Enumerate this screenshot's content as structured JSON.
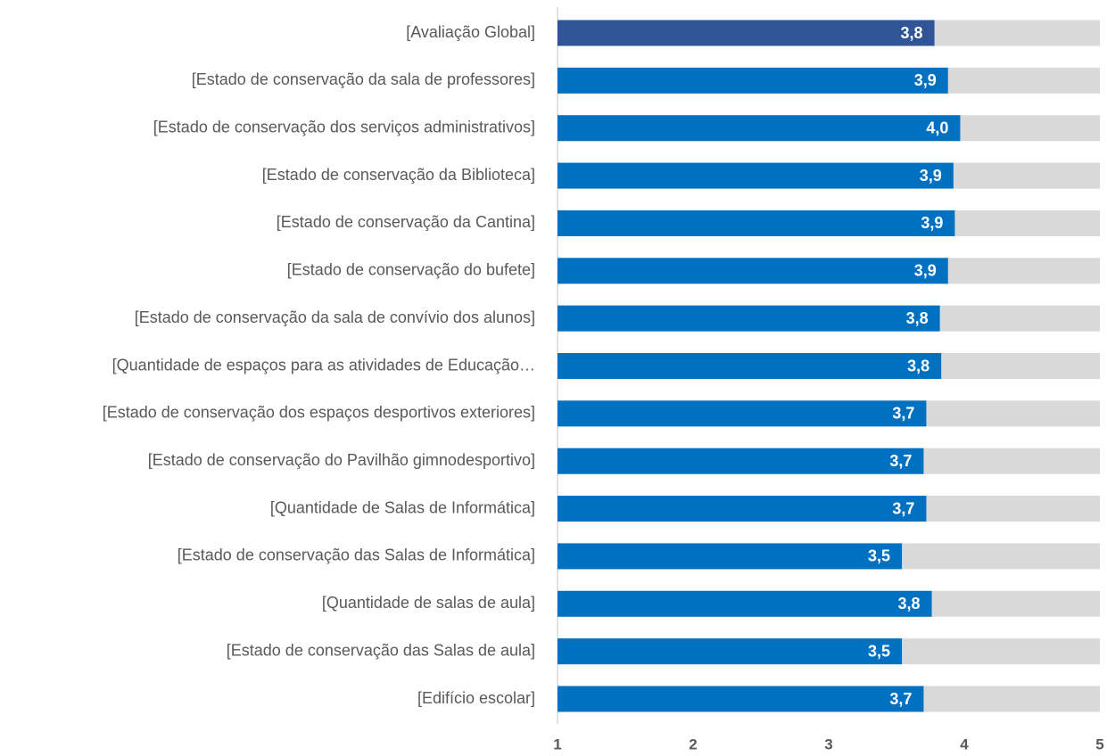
{
  "chart_data": {
    "type": "barh",
    "categories": [
      "[Avaliação Global]",
      "[Estado de conservação da sala de professores]",
      "[Estado de conservação dos serviços administrativos]",
      "[Estado de conservação da Biblioteca]",
      "[Estado de conservação da Cantina]",
      "[Estado de conservação do bufete]",
      "[Estado de conservação da sala de convívio dos alunos]",
      "[Quantidade de espaços para as atividades de Educação…",
      "[Estado de conservação dos espaços desportivos exteriores]",
      "[Estado de conservação do Pavilhão gimnodesportivo]",
      "[Quantidade de Salas de Informática]",
      "[Estado de conservação das Salas de Informática]",
      "[Quantidade de salas de aula]",
      "[Estado de conservação das Salas de aula]",
      "[Edifício escolar]"
    ],
    "values": [
      3.78,
      3.88,
      3.97,
      3.92,
      3.93,
      3.88,
      3.82,
      3.83,
      3.72,
      3.7,
      3.72,
      3.54,
      3.76,
      3.54,
      3.7
    ],
    "value_labels": [
      "3,8",
      "3,9",
      "4,0",
      "3,9",
      "3,9",
      "3,9",
      "3,8",
      "3,8",
      "3,7",
      "3,7",
      "3,7",
      "3,5",
      "3,8",
      "3,5",
      "3,7"
    ],
    "colors": [
      "#2f5597",
      "#0070c0",
      "#0070c0",
      "#0070c0",
      "#0070c0",
      "#0070c0",
      "#0070c0",
      "#0070c0",
      "#0070c0",
      "#0070c0",
      "#0070c0",
      "#0070c0",
      "#0070c0",
      "#0070c0",
      "#0070c0"
    ],
    "track_color": "#d9d9d9",
    "xlim": [
      1,
      5
    ],
    "xticks": [
      1,
      2,
      3,
      4,
      5
    ]
  }
}
